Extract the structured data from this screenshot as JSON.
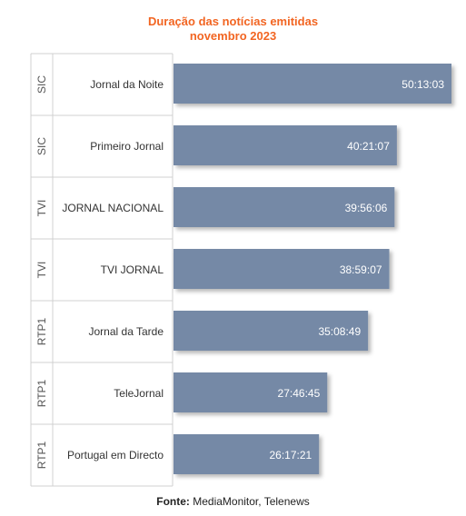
{
  "chart_data": {
    "type": "bar",
    "orientation": "horizontal",
    "title": "Duração das notícias emitidas",
    "subtitle": "novembro 2023",
    "bar_color": "#7589a6",
    "title_color": "#f26522",
    "grid": false,
    "rows": [
      {
        "channel": "SIC",
        "program": "Jornal da Noite",
        "label": "50:13:03",
        "value_seconds": 180783
      },
      {
        "channel": "SIC",
        "program": "Primeiro Jornal",
        "label": "40:21:07",
        "value_seconds": 145267
      },
      {
        "channel": "TVI",
        "program": "JORNAL NACIONAL",
        "label": "39:56:06",
        "value_seconds": 143766
      },
      {
        "channel": "TVI",
        "program": "TVI JORNAL",
        "label": "38:59:07",
        "value_seconds": 140347
      },
      {
        "channel": "RTP1",
        "program": "Jornal da Tarde",
        "label": "35:08:49",
        "value_seconds": 126529
      },
      {
        "channel": "RTP1",
        "program": "TeleJornal",
        "label": "27:46:45",
        "value_seconds": 100005
      },
      {
        "channel": "RTP1",
        "program": "Portugal em Directo",
        "label": "26:17:21",
        "value_seconds": 94641
      }
    ]
  },
  "source": {
    "prefix": "Fonte:",
    "text": "MediaMonitor, Telenews"
  }
}
